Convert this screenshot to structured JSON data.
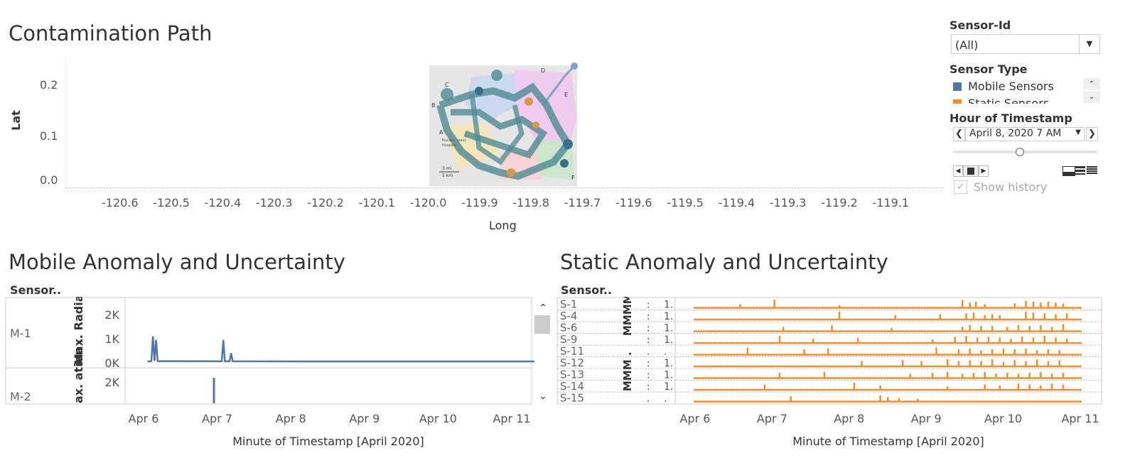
{
  "colors": {
    "mobile": "#4e79a7",
    "static": "#f28e2b",
    "grid": "#ddd",
    "text": "#333"
  },
  "path_chart": {
    "title": "Contamination Path",
    "ylabel": "Lat",
    "xlabel": "Long",
    "y_ticks": [
      "0.2",
      "0.1",
      "0.0"
    ],
    "x_ticks": [
      "-120.6",
      "-120.5",
      "-120.4",
      "-120.3",
      "-120.2",
      "-120.1",
      "-120.0",
      "-119.9",
      "-119.8",
      "-119.7",
      "-119.6",
      "-119.5",
      "-119.4",
      "-119.3",
      "-119.2",
      "-119.1"
    ],
    "map_labels": {
      "scale_mi": "3 mi",
      "scale_km": "5 km",
      "legend_nuclear": "Nuclear plant",
      "legend_hospital": "Hospital",
      "letters": [
        "A",
        "B",
        "C",
        "D",
        "E",
        "F"
      ]
    }
  },
  "controls": {
    "sensor_id": {
      "label": "Sensor-Id",
      "value": "(All)"
    },
    "sensor_type": {
      "label": "Sensor Type",
      "items": [
        "Mobile Sensors",
        "Static Sensors"
      ]
    },
    "hour": {
      "label": "Hour of Timestamp",
      "value": "April 8, 2020 7 AM",
      "position": 0.46
    },
    "show_history": "Show history"
  },
  "chart_data": [
    {
      "type": "line",
      "title": "Mobile Anomaly and Uncertainty",
      "row_header": "Sensor..",
      "xlabel": "Minute of Timestamp [April 2020]",
      "x_ticks": [
        "Apr 6",
        "Apr 7",
        "Apr 8",
        "Apr 9",
        "Apr 10",
        "Apr 11"
      ],
      "ylabel_m1": "Max. Radiation ..",
      "ylabel_m2": "ax. ation ..",
      "y_ticks_m1": [
        "2K",
        "1K",
        "0K"
      ],
      "y_ticks_m2": [
        "2K"
      ],
      "ylim": [
        0,
        2500
      ],
      "xlim": [
        0,
        5.2
      ],
      "series": [
        {
          "name": "M-1",
          "points": [
            [
              0.05,
              60
            ],
            [
              0.1,
              70
            ],
            [
              0.12,
              1100
            ],
            [
              0.14,
              80
            ],
            [
              0.16,
              950
            ],
            [
              0.18,
              70
            ],
            [
              1.0,
              65
            ],
            [
              1.02,
              950
            ],
            [
              1.04,
              70
            ],
            [
              1.1,
              65
            ],
            [
              1.12,
              400
            ],
            [
              1.14,
              65
            ],
            [
              2.0,
              60
            ],
            [
              3.0,
              60
            ],
            [
              4.0,
              60
            ],
            [
              5.0,
              60
            ]
          ]
        },
        {
          "name": "M-2",
          "points": [
            [
              0.9,
              1500
            ]
          ]
        }
      ]
    },
    {
      "type": "line",
      "title": "Static Anomaly and Uncertainty",
      "row_header": "Sensor..",
      "xlabel": "Minute of Timestamp [April 2020]",
      "x_ticks": [
        "Apr 6",
        "Apr 7",
        "Apr 8",
        "Apr 9",
        "Apr 10",
        "Apr 11"
      ],
      "col_header": [
        "MMMM",
        ":",
        "1."
      ],
      "col_header_2": [
        "MMM .",
        ":",
        "1."
      ],
      "row_markers": [
        ":",
        ":",
        ":",
        ":",
        ".",
        ":",
        ":",
        ":",
        "."
      ],
      "row_values": [
        "1.",
        "1.",
        "1.",
        "1.",
        ".",
        "1.",
        "1.",
        "1.",
        "."
      ],
      "xlim": [
        0,
        5.2
      ],
      "sensors": [
        {
          "name": "S-1",
          "spikes": [
            [
              0.62,
              0.4
            ],
            [
              1.08,
              0.9
            ],
            [
              1.95,
              0.3
            ],
            [
              3.6,
              0.9
            ],
            [
              3.7,
              0.6
            ],
            [
              3.78,
              0.7
            ],
            [
              3.9,
              0.4
            ],
            [
              4.3,
              0.5
            ],
            [
              4.45,
              0.8
            ],
            [
              4.55,
              0.7
            ],
            [
              4.65,
              0.6
            ],
            [
              4.75,
              0.7
            ],
            [
              4.85,
              0.6
            ],
            [
              4.95,
              0.5
            ]
          ]
        },
        {
          "name": "S-4",
          "spikes": [
            [
              1.95,
              0.9
            ],
            [
              2.7,
              0.5
            ],
            [
              3.3,
              0.6
            ],
            [
              3.65,
              0.7
            ],
            [
              3.75,
              0.8
            ],
            [
              3.9,
              0.5
            ],
            [
              4.0,
              0.6
            ],
            [
              4.1,
              0.5
            ],
            [
              4.45,
              0.9
            ],
            [
              4.55,
              0.8
            ],
            [
              4.7,
              0.7
            ],
            [
              4.85,
              0.6
            ],
            [
              5.0,
              0.7
            ]
          ]
        },
        {
          "name": "S-6",
          "spikes": [
            [
              1.2,
              0.5
            ],
            [
              1.85,
              0.7
            ],
            [
              2.65,
              0.4
            ],
            [
              3.6,
              0.5
            ],
            [
              3.7,
              0.7
            ],
            [
              3.85,
              0.6
            ],
            [
              4.0,
              0.6
            ],
            [
              4.2,
              0.5
            ],
            [
              4.35,
              0.7
            ],
            [
              4.5,
              0.6
            ],
            [
              4.65,
              0.7
            ],
            [
              4.8,
              0.5
            ],
            [
              4.95,
              0.8
            ]
          ]
        },
        {
          "name": "S-9",
          "spikes": [
            [
              1.15,
              0.8
            ],
            [
              1.6,
              0.5
            ],
            [
              2.2,
              0.6
            ],
            [
              3.2,
              0.4
            ],
            [
              3.5,
              0.7
            ],
            [
              3.65,
              0.8
            ],
            [
              3.8,
              0.6
            ],
            [
              3.95,
              0.7
            ],
            [
              4.1,
              0.6
            ],
            [
              4.25,
              0.5
            ],
            [
              4.4,
              0.7
            ],
            [
              4.55,
              0.6
            ],
            [
              4.7,
              0.8
            ],
            [
              4.85,
              0.6
            ],
            [
              5.0,
              0.5
            ]
          ]
        },
        {
          "name": "S-11",
          "spikes": [
            [
              0.72,
              0.8
            ],
            [
              1.48,
              0.6
            ],
            [
              1.8,
              0.7
            ],
            [
              3.25,
              0.8
            ],
            [
              3.55,
              0.6
            ],
            [
              3.7,
              0.7
            ],
            [
              3.85,
              0.5
            ],
            [
              4.0,
              0.6
            ],
            [
              4.15,
              0.7
            ],
            [
              4.3,
              0.6
            ],
            [
              4.45,
              0.7
            ],
            [
              4.6,
              0.5
            ],
            [
              4.75,
              0.6
            ],
            [
              4.9,
              0.5
            ]
          ]
        },
        {
          "name": "S-12",
          "spikes": [
            [
              2.25,
              0.6
            ],
            [
              2.8,
              0.7
            ],
            [
              3.05,
              0.6
            ],
            [
              3.4,
              0.8
            ],
            [
              3.55,
              0.6
            ],
            [
              3.7,
              0.7
            ],
            [
              3.85,
              0.6
            ],
            [
              4.0,
              0.8
            ],
            [
              4.15,
              0.5
            ],
            [
              4.3,
              0.7
            ],
            [
              4.45,
              0.6
            ],
            [
              4.6,
              0.8
            ],
            [
              4.75,
              0.6
            ],
            [
              4.9,
              0.7
            ]
          ]
        },
        {
          "name": "S-13",
          "spikes": [
            [
              1.15,
              0.6
            ],
            [
              1.75,
              0.7
            ],
            [
              2.9,
              0.5
            ],
            [
              3.2,
              0.6
            ],
            [
              3.4,
              0.7
            ],
            [
              3.6,
              0.5
            ],
            [
              3.75,
              0.6
            ],
            [
              3.9,
              0.7
            ],
            [
              4.05,
              0.5
            ],
            [
              4.2,
              0.6
            ],
            [
              4.35,
              0.5
            ],
            [
              4.5,
              0.6
            ],
            [
              4.65,
              0.7
            ],
            [
              4.8,
              0.5
            ],
            [
              4.95,
              0.6
            ]
          ]
        },
        {
          "name": "S-14",
          "spikes": [
            [
              0.95,
              0.6
            ],
            [
              2.15,
              0.8
            ],
            [
              2.5,
              0.5
            ],
            [
              3.4,
              0.4
            ],
            [
              3.9,
              0.6
            ],
            [
              4.1,
              0.5
            ],
            [
              4.35,
              0.7
            ],
            [
              4.5,
              0.6
            ],
            [
              4.65,
              0.5
            ],
            [
              4.8,
              0.7
            ],
            [
              4.95,
              0.6
            ]
          ]
        },
        {
          "name": "S-15",
          "spikes": [
            [
              1.3,
              0.6
            ],
            [
              2.5,
              0.7
            ],
            [
              2.6,
              0.5
            ],
            [
              2.75,
              0.4
            ],
            [
              3.0,
              0.3
            ]
          ]
        }
      ]
    }
  ]
}
